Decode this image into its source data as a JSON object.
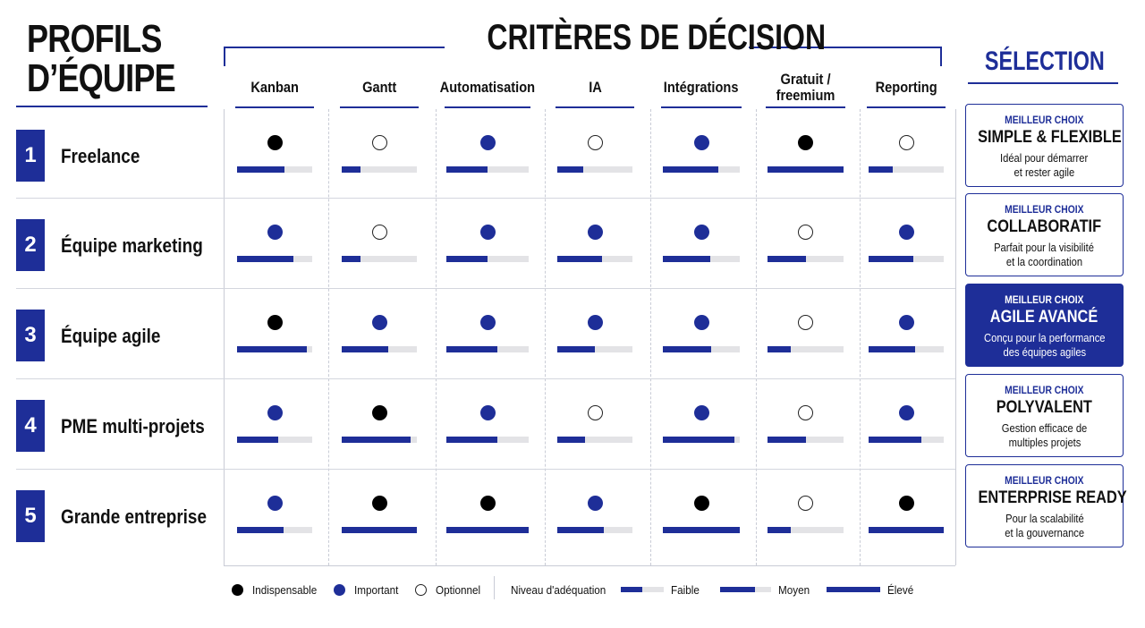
{
  "header": {
    "profils_title_line1": "PROFILS",
    "profils_title_line2": "D’ÉQUIPE",
    "criteres_title": "CRITÈRES DE DÉCISION",
    "selection_title": "SÉLECTION"
  },
  "columns": [
    {
      "label": "Kanban"
    },
    {
      "label": "Gantt"
    },
    {
      "label": "Automatisation"
    },
    {
      "label": "IA"
    },
    {
      "label": "Intégrations"
    },
    {
      "label": "Gratuit / freemium"
    },
    {
      "label": "Reporting"
    }
  ],
  "rows": [
    {
      "number": "1",
      "label": "Freelance",
      "cells": [
        {
          "importance": "indispensable",
          "fit": 0.63
        },
        {
          "importance": "optionnel",
          "fit": 0.25
        },
        {
          "importance": "important",
          "fit": 0.5
        },
        {
          "importance": "optionnel",
          "fit": 0.35
        },
        {
          "importance": "important",
          "fit": 0.72
        },
        {
          "importance": "indispensable",
          "fit": 1.0
        },
        {
          "importance": "optionnel",
          "fit": 0.32
        }
      ],
      "selection": {
        "kicker": "MEILLEUR CHOIX",
        "title": "SIMPLE & FLEXIBLE",
        "desc1": "Idéal pour démarrer",
        "desc2": "et rester agile",
        "featured": false
      }
    },
    {
      "number": "2",
      "label": "Équipe marketing",
      "cells": [
        {
          "importance": "important",
          "fit": 0.75
        },
        {
          "importance": "optionnel",
          "fit": 0.25
        },
        {
          "importance": "important",
          "fit": 0.5
        },
        {
          "importance": "important",
          "fit": 0.6
        },
        {
          "importance": "important",
          "fit": 0.62
        },
        {
          "importance": "optionnel",
          "fit": 0.5
        },
        {
          "importance": "important",
          "fit": 0.6
        }
      ],
      "selection": {
        "kicker": "MEILLEUR CHOIX",
        "title": "COLLABORATIF",
        "desc1": "Parfait pour la visibilité",
        "desc2": "et la coordination",
        "featured": false
      }
    },
    {
      "number": "3",
      "label": "Équipe agile",
      "cells": [
        {
          "importance": "indispensable",
          "fit": 0.93
        },
        {
          "importance": "important",
          "fit": 0.62
        },
        {
          "importance": "important",
          "fit": 0.62
        },
        {
          "importance": "important",
          "fit": 0.5
        },
        {
          "importance": "important",
          "fit": 0.63
        },
        {
          "importance": "optionnel",
          "fit": 0.3
        },
        {
          "importance": "important",
          "fit": 0.62
        }
      ],
      "selection": {
        "kicker": "MEILLEUR CHOIX",
        "title": "AGILE AVANCÉ",
        "desc1": "Conçu pour la performance",
        "desc2": "des équipes agiles",
        "featured": true
      }
    },
    {
      "number": "4",
      "label": "PME multi-projets",
      "cells": [
        {
          "importance": "important",
          "fit": 0.55
        },
        {
          "importance": "indispensable",
          "fit": 0.92
        },
        {
          "importance": "important",
          "fit": 0.62
        },
        {
          "importance": "optionnel",
          "fit": 0.37
        },
        {
          "importance": "important",
          "fit": 0.93
        },
        {
          "importance": "optionnel",
          "fit": 0.5
        },
        {
          "importance": "important",
          "fit": 0.7
        }
      ],
      "selection": {
        "kicker": "MEILLEUR CHOIX",
        "title": "POLYVALENT",
        "desc1": "Gestion efficace de",
        "desc2": "multiples projets",
        "featured": false
      }
    },
    {
      "number": "5",
      "label": "Grande entreprise",
      "cells": [
        {
          "importance": "important",
          "fit": 0.62
        },
        {
          "importance": "indispensable",
          "fit": 1.0
        },
        {
          "importance": "indispensable",
          "fit": 1.0
        },
        {
          "importance": "important",
          "fit": 0.62
        },
        {
          "importance": "indispensable",
          "fit": 1.0
        },
        {
          "importance": "optionnel",
          "fit": 0.3
        },
        {
          "importance": "indispensable",
          "fit": 1.0
        }
      ],
      "selection": {
        "kicker": "MEILLEUR CHOIX",
        "title": "ENTERPRISE READY",
        "desc1": "Pour la scalabilité",
        "desc2": "et la gouvernance",
        "featured": false
      }
    }
  ],
  "legend": {
    "indispensable": "Indispensable",
    "important": "Important",
    "optionnel": "Optionnel",
    "niveau": "Niveau d'adéquation",
    "faible": "Faible",
    "moyen": "Moyen",
    "eleve": "Élevé",
    "faible_fit": 0.5,
    "moyen_fit": 0.68,
    "eleve_fit": 1.0
  },
  "colors": {
    "accent": "#1e2e98",
    "indispensable": "#000000",
    "track": "#e3e3e6"
  }
}
